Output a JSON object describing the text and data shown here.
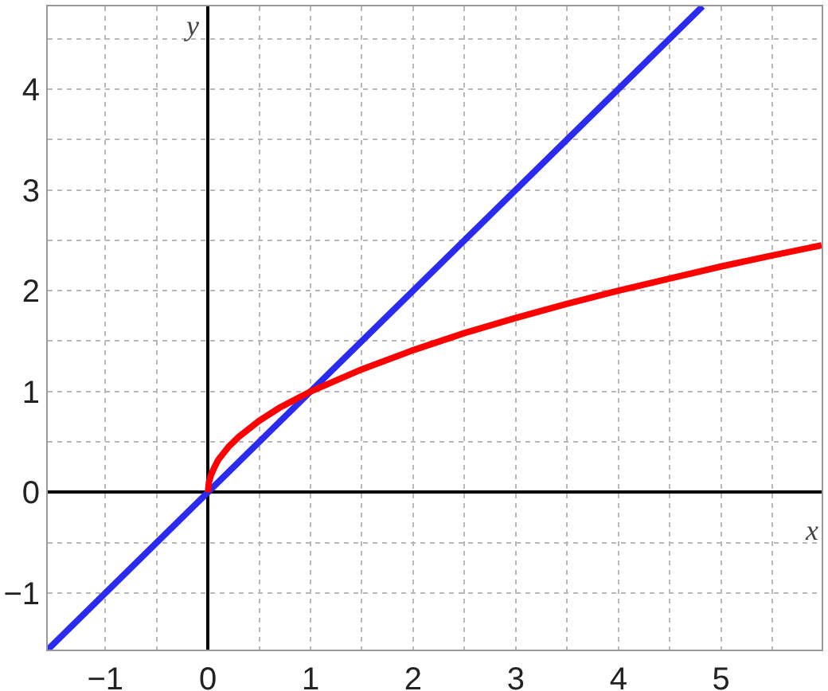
{
  "chart_data": {
    "type": "line",
    "xlabel": "x",
    "ylabel": "y",
    "series": [
      {
        "color": "#2b2bf0",
        "x": [
          -1.56,
          4.82
        ],
        "values": [
          -1.56,
          4.82
        ]
      },
      {
        "color": "#ff0000",
        "x": [
          0,
          0.01,
          0.03,
          0.06,
          0.1,
          0.2,
          0.3,
          0.5,
          0.7,
          1,
          1.5,
          2,
          2.5,
          3,
          3.5,
          4,
          4.5,
          5,
          5.5,
          5.98
        ],
        "values": [
          0,
          0.1,
          0.17,
          0.24,
          0.32,
          0.45,
          0.55,
          0.71,
          0.84,
          1,
          1.22,
          1.41,
          1.58,
          1.73,
          1.87,
          2,
          2.12,
          2.24,
          2.35,
          2.45
        ]
      }
    ],
    "xlim": [
      -1.56,
      5.98
    ],
    "ylim": [
      -1.56,
      4.82
    ],
    "xticks": [
      -1,
      {
        "value": -0.5,
        "label": null
      },
      0,
      {
        "value": 0.5,
        "label": null
      },
      1,
      {
        "value": 1.5,
        "label": null
      },
      2,
      {
        "value": 2.5,
        "label": null
      },
      3,
      {
        "value": 3.5,
        "label": null
      },
      4,
      {
        "value": 4.5,
        "label": null
      },
      5,
      {
        "value": 5.5,
        "label": null
      }
    ],
    "yticks": [
      -1,
      {
        "value": -0.5,
        "label": null
      },
      0,
      {
        "value": 0.5,
        "label": null
      },
      1,
      {
        "value": 1.5,
        "label": null
      },
      2,
      {
        "value": 2.5,
        "label": null
      },
      3,
      {
        "value": 3.5,
        "label": null
      },
      4,
      {
        "value": 4.5,
        "label": null
      }
    ],
    "grid": true,
    "marker": "none",
    "line_style": "solid"
  }
}
